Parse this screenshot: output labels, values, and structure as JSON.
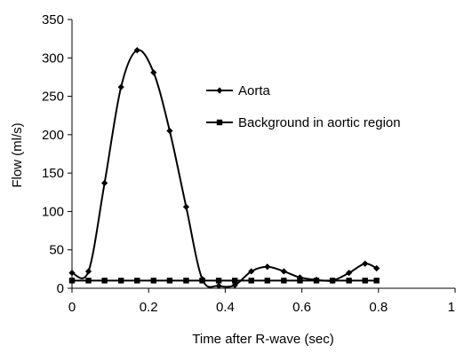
{
  "chart_data": {
    "type": "line",
    "title": "",
    "xlabel": "Time after R-wave (sec)",
    "ylabel": "Flow (ml/s)",
    "xlim": [
      0,
      1
    ],
    "ylim": [
      0,
      350
    ],
    "xticks": [
      0,
      0.2,
      0.4,
      0.6,
      0.8,
      1
    ],
    "xtick_labels": [
      "0",
      "0.2",
      "0.4",
      "0.6",
      "0.8",
      "1"
    ],
    "yticks": [
      0,
      50,
      100,
      150,
      200,
      250,
      300,
      350
    ],
    "ytick_labels": [
      "0",
      "50",
      "100",
      "150",
      "200",
      "250",
      "300",
      "350"
    ],
    "grid": false,
    "legend_position": "center-right",
    "series": [
      {
        "name": "Aorta",
        "marker": "diamond",
        "color": "#000000",
        "x": [
          0.0,
          0.043,
          0.085,
          0.128,
          0.17,
          0.213,
          0.255,
          0.298,
          0.34,
          0.383,
          0.425,
          0.468,
          0.51,
          0.553,
          0.595,
          0.638,
          0.68,
          0.723,
          0.765,
          0.795
        ],
        "y": [
          20,
          22,
          137,
          262,
          310,
          281,
          205,
          106,
          12,
          3,
          4,
          22,
          28,
          22,
          14,
          11,
          10,
          20,
          32,
          26
        ]
      },
      {
        "name": "Background in aortic region",
        "marker": "square",
        "color": "#000000",
        "x": [
          0.0,
          0.043,
          0.085,
          0.128,
          0.17,
          0.213,
          0.255,
          0.298,
          0.34,
          0.383,
          0.425,
          0.468,
          0.51,
          0.553,
          0.595,
          0.638,
          0.68,
          0.723,
          0.765,
          0.795
        ],
        "y": [
          10,
          10,
          10,
          10,
          10,
          10,
          10,
          10,
          10,
          10,
          10,
          10,
          10,
          10,
          10,
          10,
          10,
          10,
          10,
          10
        ]
      }
    ]
  }
}
